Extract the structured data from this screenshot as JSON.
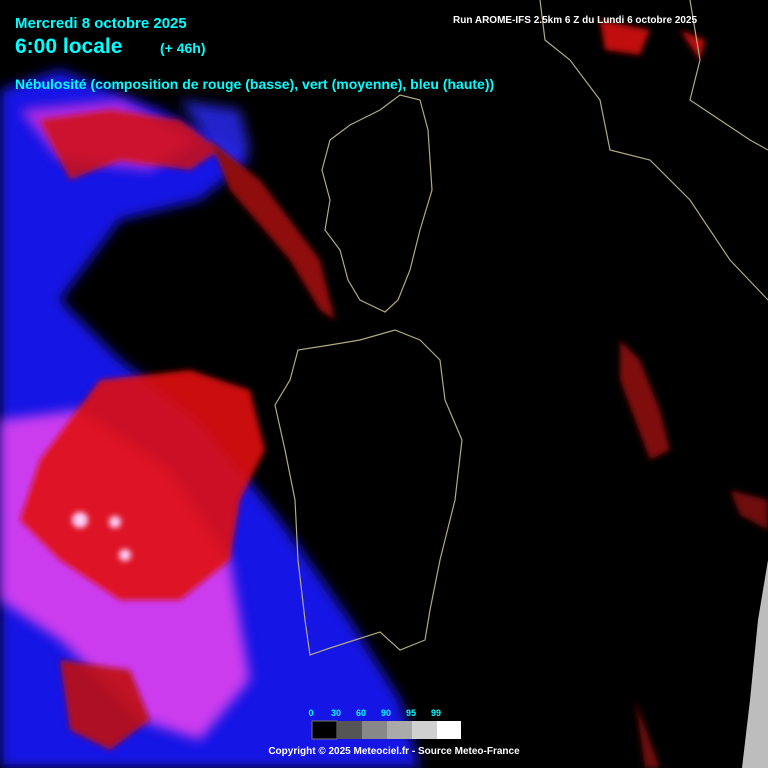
{
  "header": {
    "date": "Mercredi 8 octobre 2025",
    "time": "6:00 locale",
    "lead": "(+ 46h)",
    "run": "Run AROME-IFS 2.5km 6 Z du Lundi 6 octobre 2025",
    "title": "Nébulosité (composition de rouge (basse), vert (moyenne), bleu (haute))"
  },
  "legend": {
    "ticks": [
      0,
      30,
      60,
      90,
      95,
      99
    ]
  },
  "footer": {
    "copyright": "Copyright © 2025 Meteociel.fr - Source Meteo-France"
  }
}
